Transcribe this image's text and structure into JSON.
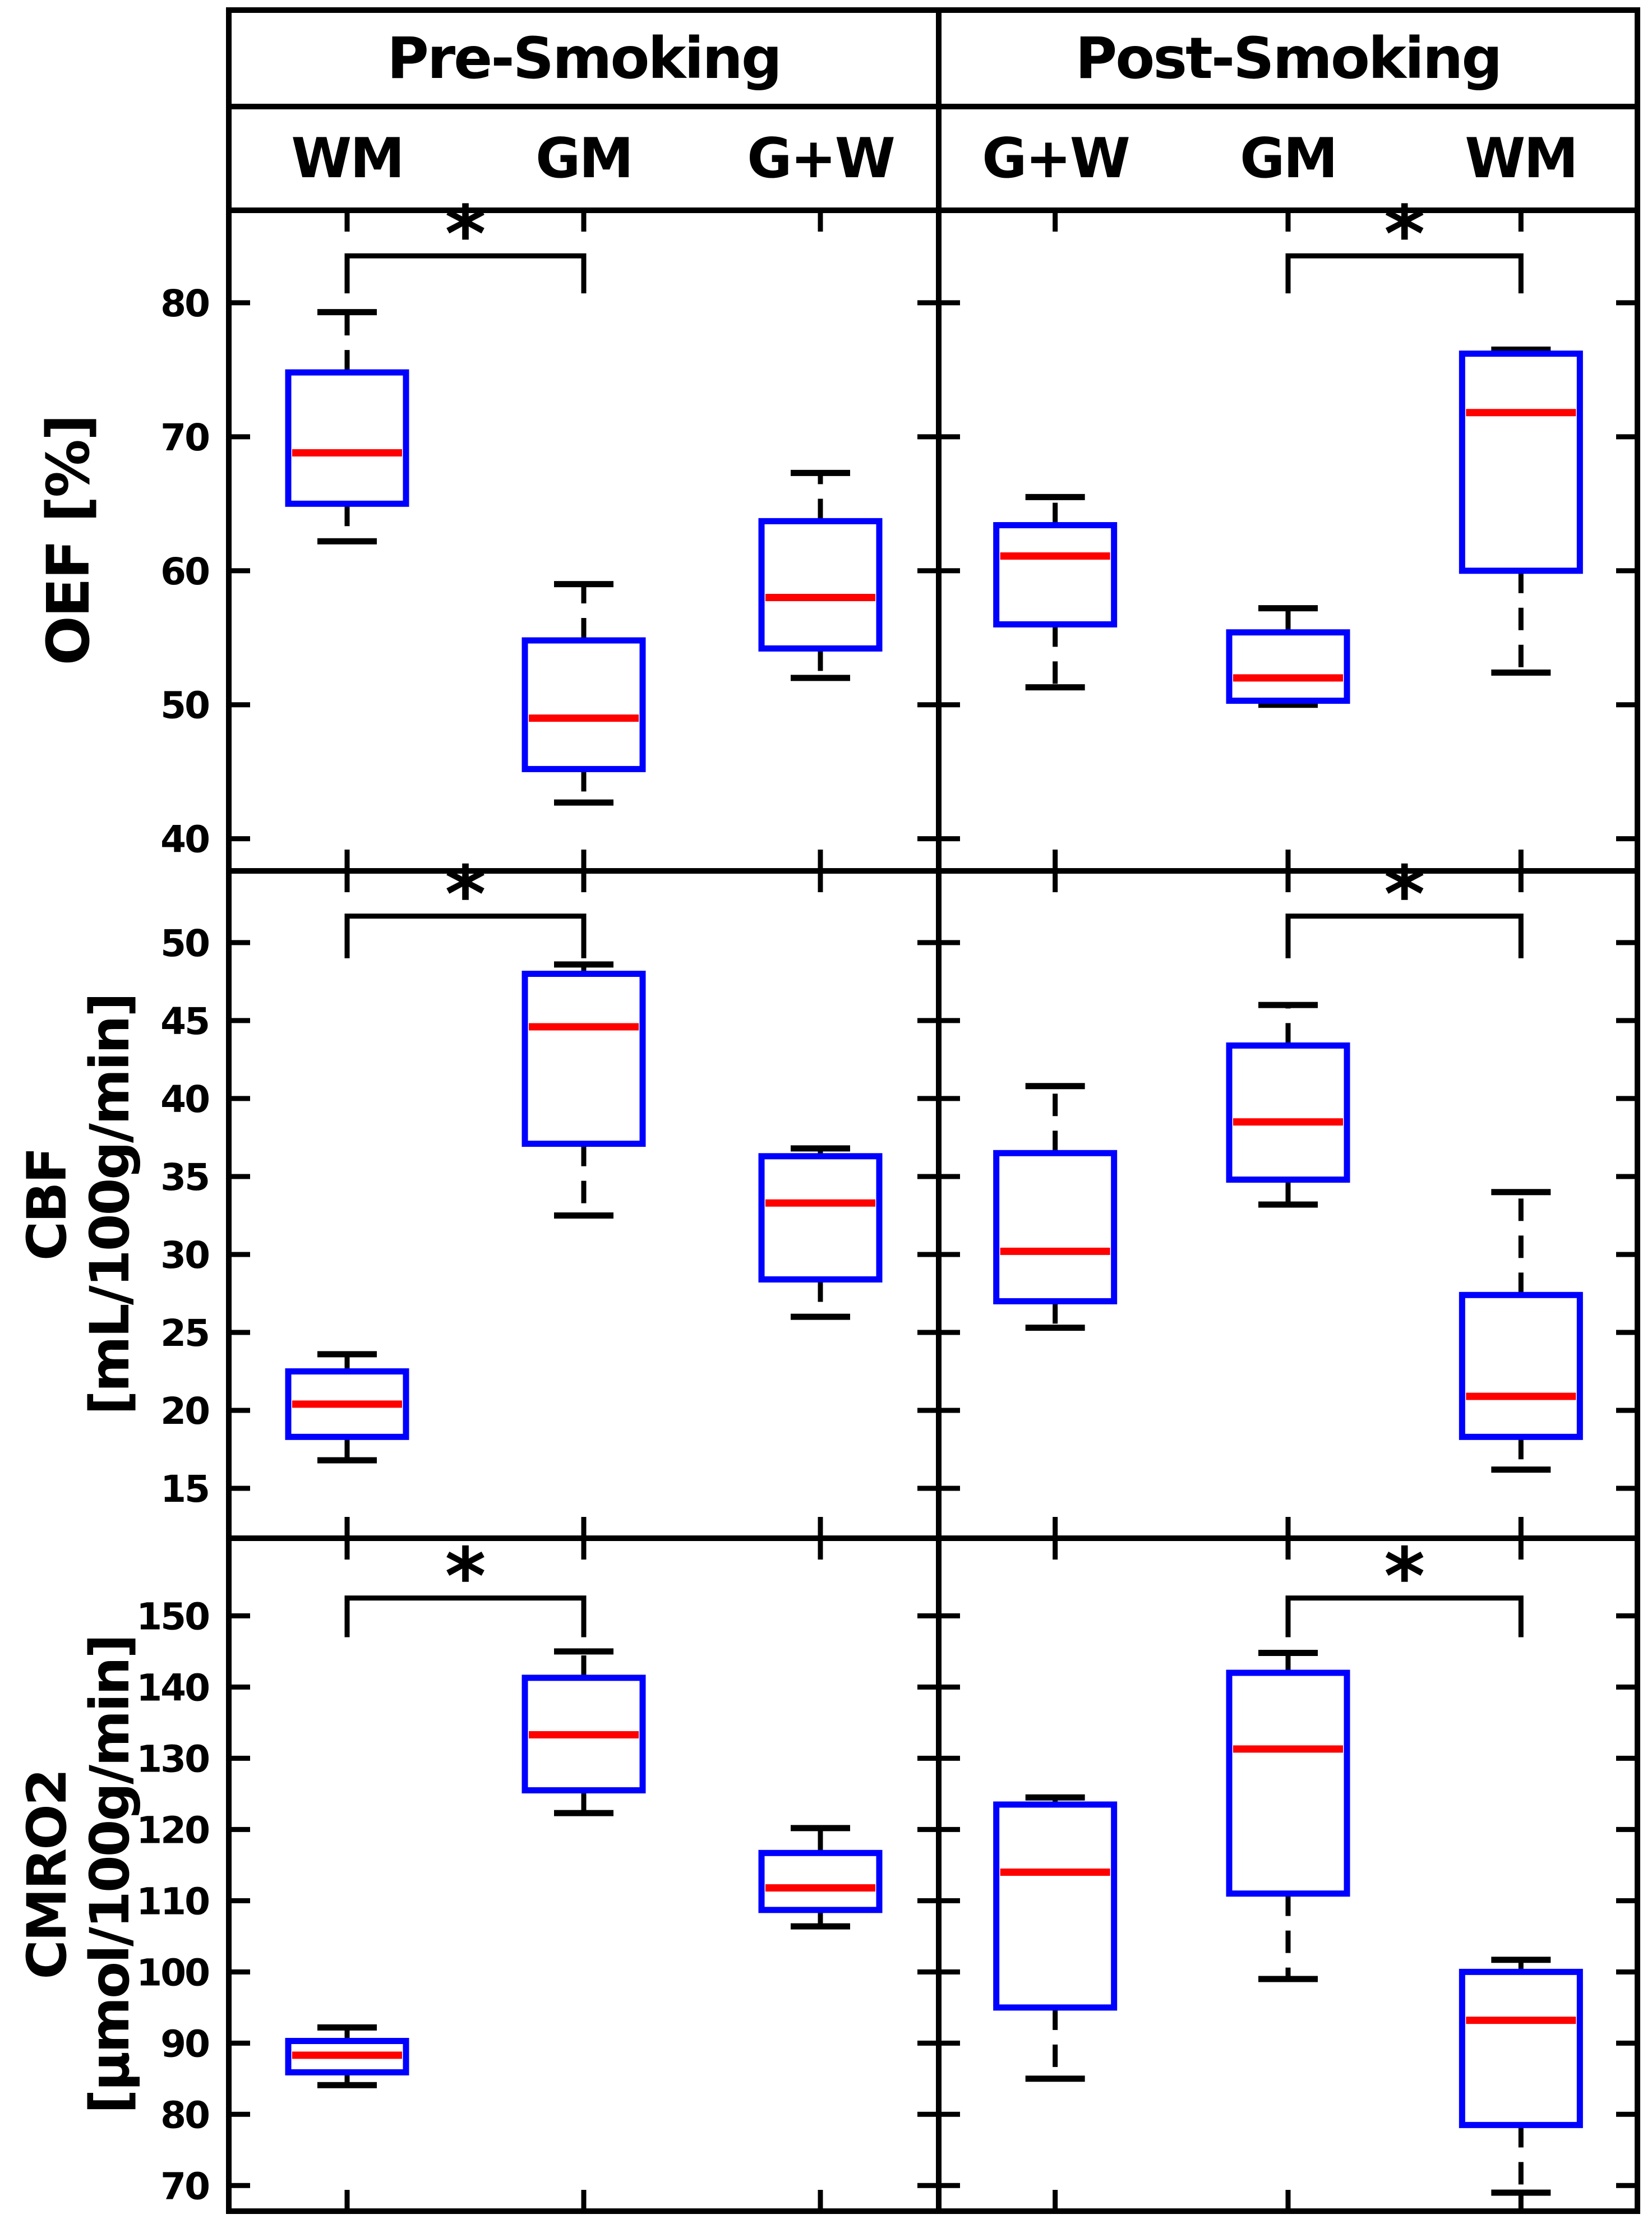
{
  "figure": {
    "columns": [
      {
        "title": "Pre-Smoking",
        "group_labels": [
          "WM",
          "GM",
          "G+W"
        ]
      },
      {
        "title": "Post-Smoking",
        "group_labels": [
          "G+W",
          "GM",
          "WM"
        ]
      }
    ],
    "rows": [
      {
        "label_lines": [
          "OEF [%]",
          ""
        ],
        "ticks": [
          40,
          50,
          60,
          70,
          80
        ],
        "ylim": [
          37.6,
          86.9
        ]
      },
      {
        "label_lines": [
          "CBF",
          "[mL/100g/min]"
        ],
        "ticks": [
          15,
          20,
          25,
          30,
          35,
          40,
          45,
          50
        ],
        "ylim": [
          11.8,
          54.6
        ]
      },
      {
        "label_lines": [
          "CMRO2",
          "[μmol/100g/min]"
        ],
        "ticks": [
          70,
          80,
          90,
          100,
          110,
          120,
          130,
          140,
          150
        ],
        "ylim": [
          66.4,
          160.9
        ]
      }
    ],
    "colors": {
      "box": "#0000ff",
      "median": "#ff0000",
      "line": "#000000",
      "background": "#ffffff"
    }
  },
  "chart_data": {
    "type": "boxplot",
    "layout_note": "2 columns (Pre/Post smoking) x 3 rows (OEF, CBF, CMRO2); whiskers dashed black, boxes blue, medians red",
    "panels": [
      {
        "row": 0,
        "col": 0,
        "measure": "OEF [%]",
        "condition": "Pre-Smoking",
        "boxes": [
          {
            "group": "WM",
            "whisker_low": 62.2,
            "q1": 65.0,
            "median": 68.8,
            "q3": 74.8,
            "whisker_high": 79.3
          },
          {
            "group": "GM",
            "whisker_low": 42.7,
            "q1": 45.2,
            "median": 49.0,
            "q3": 54.8,
            "whisker_high": 59.0
          },
          {
            "group": "G+W",
            "whisker_low": 52.0,
            "q1": 54.2,
            "median": 58.0,
            "q3": 63.7,
            "whisker_high": 67.3
          }
        ],
        "significance": {
          "pair": [
            0,
            1
          ],
          "label": "*",
          "line": 83.5,
          "legs": 80.7
        }
      },
      {
        "row": 0,
        "col": 1,
        "measure": "OEF [%]",
        "condition": "Post-Smoking",
        "boxes": [
          {
            "group": "G+W",
            "whisker_low": 51.3,
            "q1": 56.0,
            "median": 61.1,
            "q3": 63.4,
            "whisker_high": 65.5
          },
          {
            "group": "GM",
            "whisker_low": 50.0,
            "q1": 50.3,
            "median": 52.0,
            "q3": 55.4,
            "whisker_high": 57.2
          },
          {
            "group": "WM",
            "whisker_low": 52.4,
            "q1": 60.0,
            "median": 71.8,
            "q3": 76.2,
            "whisker_high": 76.5
          }
        ],
        "significance": {
          "pair": [
            1,
            2
          ],
          "label": "*",
          "line": 83.5,
          "legs": 80.7
        }
      },
      {
        "row": 1,
        "col": 0,
        "measure": "CBF [mL/100g/min]",
        "condition": "Pre-Smoking",
        "boxes": [
          {
            "group": "WM",
            "whisker_low": 16.8,
            "q1": 18.3,
            "median": 20.4,
            "q3": 22.5,
            "whisker_high": 23.6
          },
          {
            "group": "GM",
            "whisker_low": 32.5,
            "q1": 37.1,
            "median": 44.6,
            "q3": 48.0,
            "whisker_high": 48.6
          },
          {
            "group": "G+W",
            "whisker_low": 26.0,
            "q1": 28.4,
            "median": 33.3,
            "q3": 36.3,
            "whisker_high": 36.8
          }
        ],
        "significance": {
          "pair": [
            0,
            1
          ],
          "label": "*",
          "line": 51.7,
          "legs": 49.0
        }
      },
      {
        "row": 1,
        "col": 1,
        "measure": "CBF [mL/100g/min]",
        "condition": "Post-Smoking",
        "boxes": [
          {
            "group": "G+W",
            "whisker_low": 25.3,
            "q1": 27.0,
            "median": 30.2,
            "q3": 36.5,
            "whisker_high": 40.8
          },
          {
            "group": "GM",
            "whisker_low": 33.2,
            "q1": 34.8,
            "median": 38.5,
            "q3": 43.4,
            "whisker_high": 46.0
          },
          {
            "group": "WM",
            "whisker_low": 16.2,
            "q1": 18.3,
            "median": 20.9,
            "q3": 27.4,
            "whisker_high": 34.0
          }
        ],
        "significance": {
          "pair": [
            1,
            2
          ],
          "label": "*",
          "line": 51.7,
          "legs": 49.0
        }
      },
      {
        "row": 2,
        "col": 0,
        "measure": "CMRO2 [μmol/100g/min]",
        "condition": "Pre-Smoking",
        "boxes": [
          {
            "group": "WM",
            "whisker_low": 84.1,
            "q1": 85.9,
            "median": 88.3,
            "q3": 90.3,
            "whisker_high": 92.2
          },
          {
            "group": "GM",
            "whisker_low": 122.3,
            "q1": 125.5,
            "median": 133.3,
            "q3": 141.3,
            "whisker_high": 145.0
          },
          {
            "group": "G+W",
            "whisker_low": 106.4,
            "q1": 108.7,
            "median": 111.8,
            "q3": 116.7,
            "whisker_high": 120.2
          }
        ],
        "significance": {
          "pair": [
            0,
            1
          ],
          "label": "*",
          "line": 152.5,
          "legs": 147.0
        }
      },
      {
        "row": 2,
        "col": 1,
        "measure": "CMRO2 [μmol/100g/min]",
        "condition": "Post-Smoking",
        "boxes": [
          {
            "group": "G+W",
            "whisker_low": 85.0,
            "q1": 95.0,
            "median": 114.0,
            "q3": 123.5,
            "whisker_high": 124.5
          },
          {
            "group": "GM",
            "whisker_low": 99.0,
            "q1": 111.0,
            "median": 131.3,
            "q3": 142.0,
            "whisker_high": 144.8
          },
          {
            "group": "WM",
            "whisker_low": 69.0,
            "q1": 78.5,
            "median": 93.2,
            "q3": 100.0,
            "whisker_high": 101.7
          }
        ],
        "significance": {
          "pair": [
            1,
            2
          ],
          "label": "*",
          "line": 152.5,
          "legs": 147.0
        }
      }
    ]
  }
}
